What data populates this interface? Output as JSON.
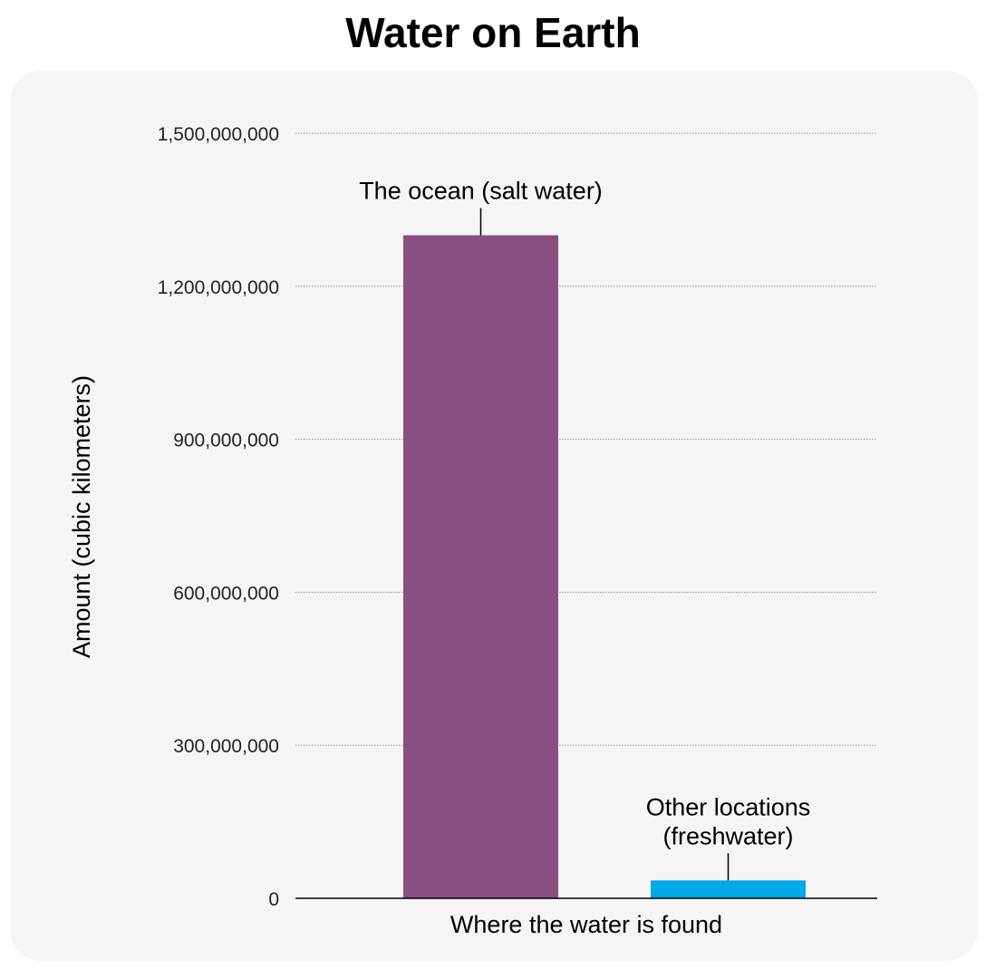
{
  "title": "Water on Earth",
  "colors": {
    "panel_background": "#f6f4f5",
    "ocean_bar": "#8a4d80",
    "freshwater_bar": "#00a8e8",
    "grid": "#9a9a9a",
    "axis": "#000000"
  },
  "chart_data": {
    "type": "bar",
    "title": "Water on Earth",
    "xlabel": "Where the water is found",
    "ylabel": "Amount (cubic kilometers)",
    "ylim": [
      0,
      1500000000
    ],
    "yticks": [
      0,
      300000000,
      600000000,
      900000000,
      1200000000,
      1500000000
    ],
    "ytick_labels": [
      "0",
      "300,000,000",
      "600,000,000",
      "900,000,000",
      "1,200,000,000",
      "1,500,000,000"
    ],
    "grid": true,
    "categories": [
      "The ocean (salt water)",
      "Other locations (freshwater)"
    ],
    "category_label_lines": [
      [
        "The ocean (salt water)"
      ],
      [
        "Other locations",
        "(freshwater)"
      ]
    ],
    "values": [
      1300000000,
      35000000
    ]
  }
}
